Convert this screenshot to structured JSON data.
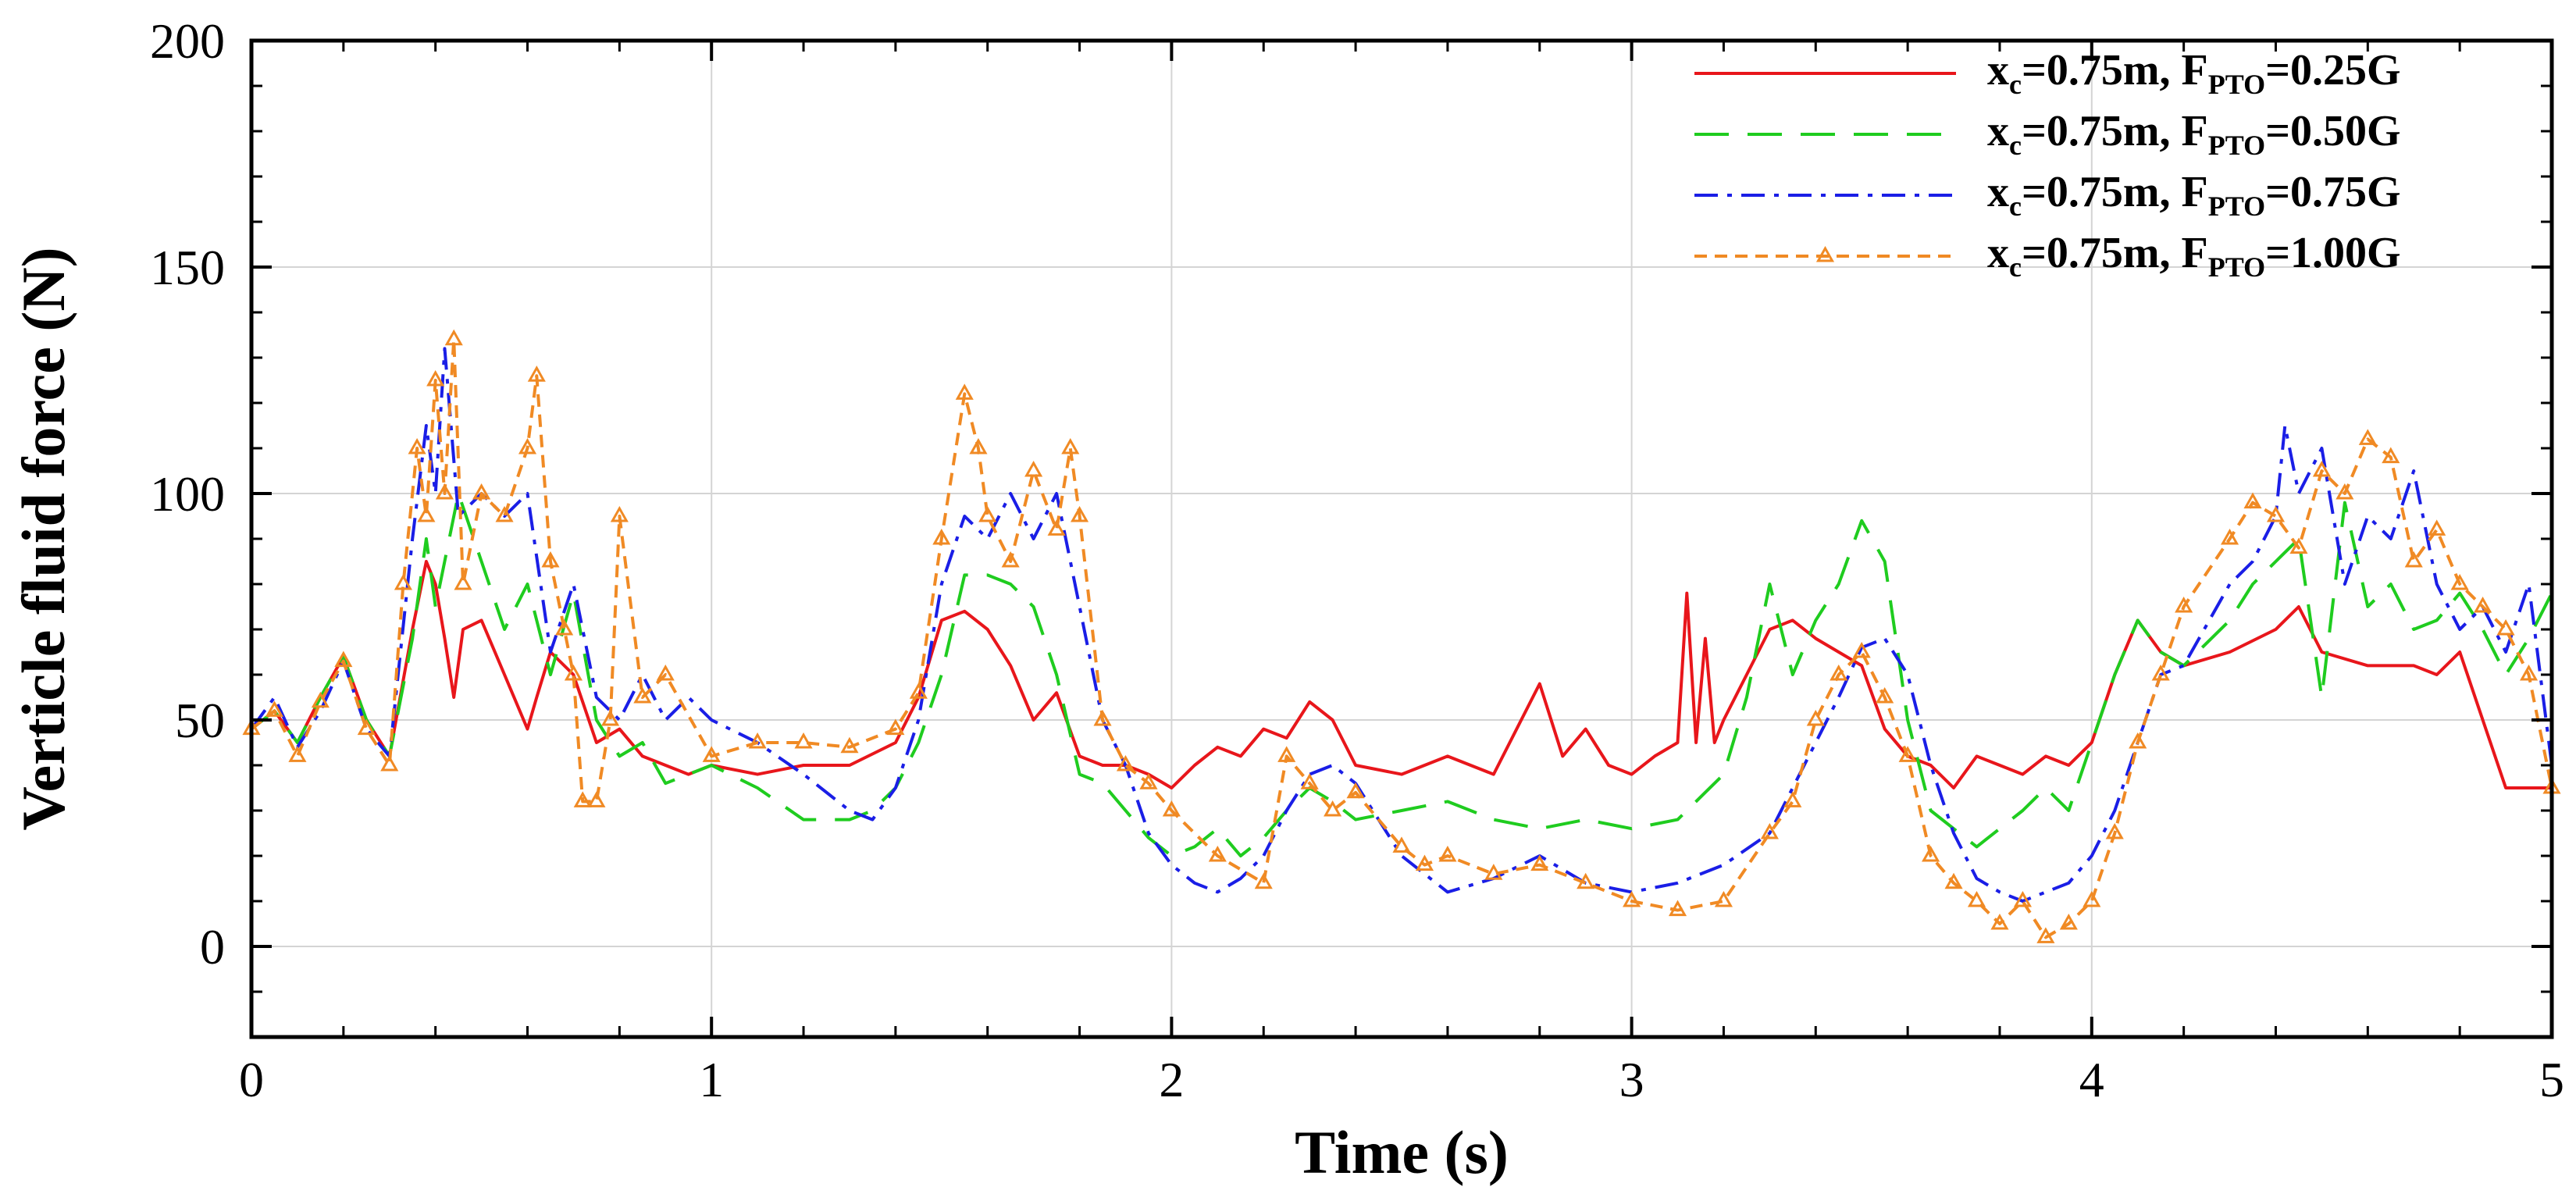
{
  "chart_data": {
    "type": "line",
    "title": "",
    "xlabel": "Time (s)",
    "ylabel": "Verticle fluid force (N)",
    "xlim": [
      0,
      5
    ],
    "ylim": [
      -20,
      200
    ],
    "xticks": [
      0,
      1,
      2,
      3,
      4,
      5
    ],
    "xtick_labels": [
      "0",
      "1",
      "2",
      "3",
      "4",
      "5"
    ],
    "yticks": [
      0,
      50,
      100,
      150,
      200
    ],
    "ytick_labels": [
      "0",
      "50",
      "100",
      "150",
      "200"
    ],
    "grid": true,
    "legend_position": "top-right",
    "series": [
      {
        "name": "xc=0.75m, FPTO=0.25G",
        "legend": {
          "x_main": "x",
          "x_sub": "c",
          "mid": "=0.75m, F",
          "f_sub": "PTO",
          "tail": "=0.25G"
        },
        "color": "#e8161b",
        "dash": "solid",
        "marker": "none",
        "x": [
          0,
          0.05,
          0.1,
          0.15,
          0.2,
          0.25,
          0.3,
          0.35,
          0.38,
          0.4,
          0.42,
          0.44,
          0.46,
          0.5,
          0.55,
          0.6,
          0.62,
          0.65,
          0.7,
          0.75,
          0.8,
          0.85,
          0.9,
          0.95,
          1.0,
          1.1,
          1.2,
          1.3,
          1.4,
          1.45,
          1.5,
          1.55,
          1.6,
          1.65,
          1.7,
          1.75,
          1.8,
          1.85,
          1.9,
          1.95,
          2.0,
          2.05,
          2.1,
          2.15,
          2.2,
          2.25,
          2.3,
          2.35,
          2.4,
          2.5,
          2.6,
          2.7,
          2.8,
          2.85,
          2.9,
          2.95,
          3.0,
          3.05,
          3.1,
          3.12,
          3.14,
          3.16,
          3.18,
          3.2,
          3.25,
          3.3,
          3.35,
          3.4,
          3.45,
          3.5,
          3.55,
          3.6,
          3.65,
          3.7,
          3.75,
          3.8,
          3.85,
          3.9,
          3.95,
          4.0,
          4.05,
          4.1,
          4.15,
          4.2,
          4.3,
          4.4,
          4.45,
          4.5,
          4.6,
          4.7,
          4.75,
          4.8,
          4.85,
          4.9,
          5.0
        ],
        "values": [
          48,
          52,
          45,
          55,
          64,
          50,
          42,
          70,
          85,
          80,
          68,
          55,
          70,
          72,
          60,
          48,
          55,
          65,
          60,
          45,
          48,
          42,
          40,
          38,
          40,
          38,
          40,
          40,
          45,
          55,
          72,
          74,
          70,
          62,
          50,
          56,
          42,
          40,
          40,
          38,
          35,
          40,
          44,
          42,
          48,
          46,
          54,
          50,
          40,
          38,
          42,
          38,
          58,
          42,
          48,
          40,
          38,
          42,
          45,
          78,
          45,
          68,
          45,
          50,
          60,
          70,
          72,
          68,
          65,
          62,
          48,
          42,
          40,
          35,
          42,
          40,
          38,
          42,
          40,
          45,
          60,
          72,
          65,
          62,
          65,
          70,
          75,
          65,
          62,
          62,
          60,
          65,
          50,
          35,
          35
        ]
      },
      {
        "name": "xc=0.75m, FPTO=0.50G",
        "legend": {
          "x_main": "x",
          "x_sub": "c",
          "mid": "=0.75m, F",
          "f_sub": "PTO",
          "tail": "=0.50G"
        },
        "color": "#1fcc1f",
        "dash": "long-dash",
        "marker": "none",
        "x": [
          0,
          0.05,
          0.1,
          0.15,
          0.2,
          0.25,
          0.3,
          0.35,
          0.38,
          0.4,
          0.45,
          0.5,
          0.55,
          0.6,
          0.65,
          0.7,
          0.75,
          0.8,
          0.85,
          0.9,
          1.0,
          1.1,
          1.2,
          1.3,
          1.35,
          1.4,
          1.45,
          1.5,
          1.55,
          1.6,
          1.65,
          1.7,
          1.75,
          1.8,
          1.85,
          1.9,
          1.95,
          2.0,
          2.05,
          2.1,
          2.15,
          2.2,
          2.25,
          2.3,
          2.35,
          2.4,
          2.5,
          2.6,
          2.7,
          2.8,
          2.9,
          3.0,
          3.1,
          3.2,
          3.25,
          3.3,
          3.35,
          3.4,
          3.45,
          3.5,
          3.55,
          3.6,
          3.65,
          3.7,
          3.75,
          3.8,
          3.85,
          3.9,
          3.95,
          4.0,
          4.05,
          4.1,
          4.15,
          4.2,
          4.3,
          4.35,
          4.4,
          4.45,
          4.5,
          4.55,
          4.6,
          4.65,
          4.7,
          4.75,
          4.8,
          4.85,
          4.9,
          4.95,
          5.0
        ],
        "values": [
          48,
          52,
          45,
          55,
          64,
          50,
          42,
          68,
          90,
          75,
          100,
          85,
          70,
          80,
          60,
          78,
          50,
          42,
          45,
          36,
          40,
          35,
          28,
          28,
          30,
          35,
          45,
          60,
          82,
          82,
          80,
          75,
          60,
          38,
          36,
          30,
          24,
          20,
          22,
          26,
          20,
          24,
          30,
          35,
          32,
          28,
          30,
          32,
          28,
          26,
          28,
          26,
          28,
          38,
          55,
          80,
          60,
          72,
          80,
          94,
          85,
          50,
          30,
          26,
          22,
          26,
          30,
          35,
          30,
          45,
          60,
          72,
          65,
          62,
          72,
          80,
          85,
          90,
          55,
          98,
          75,
          80,
          70,
          72,
          78,
          70,
          60,
          68,
          78
        ]
      },
      {
        "name": "xc=0.75m, FPTO=0.75G",
        "legend": {
          "x_main": "x",
          "x_sub": "c",
          "mid": "=0.75m, F",
          "f_sub": "PTO",
          "tail": "=0.75G"
        },
        "color": "#1a1ee6",
        "dash": "dash-dot",
        "marker": "none",
        "x": [
          0,
          0.05,
          0.1,
          0.15,
          0.2,
          0.25,
          0.3,
          0.35,
          0.38,
          0.4,
          0.42,
          0.45,
          0.5,
          0.55,
          0.6,
          0.65,
          0.7,
          0.75,
          0.8,
          0.85,
          0.9,
          0.95,
          1.0,
          1.1,
          1.2,
          1.3,
          1.35,
          1.4,
          1.45,
          1.5,
          1.55,
          1.6,
          1.65,
          1.7,
          1.75,
          1.8,
          1.85,
          1.9,
          1.95,
          2.0,
          2.05,
          2.1,
          2.15,
          2.2,
          2.25,
          2.3,
          2.35,
          2.4,
          2.45,
          2.5,
          2.6,
          2.7,
          2.8,
          2.9,
          3.0,
          3.1,
          3.2,
          3.3,
          3.35,
          3.4,
          3.45,
          3.5,
          3.55,
          3.6,
          3.65,
          3.7,
          3.75,
          3.8,
          3.85,
          3.9,
          3.95,
          4.0,
          4.05,
          4.1,
          4.15,
          4.2,
          4.3,
          4.35,
          4.4,
          4.42,
          4.45,
          4.5,
          4.55,
          4.6,
          4.65,
          4.7,
          4.75,
          4.8,
          4.85,
          4.9,
          4.95,
          5.0
        ],
        "values": [
          48,
          55,
          44,
          52,
          63,
          48,
          42,
          90,
          115,
          100,
          132,
          95,
          100,
          95,
          100,
          65,
          80,
          55,
          50,
          60,
          50,
          55,
          50,
          45,
          38,
          30,
          28,
          35,
          50,
          80,
          95,
          90,
          100,
          90,
          100,
          75,
          50,
          40,
          25,
          18,
          14,
          12,
          15,
          20,
          30,
          38,
          40,
          36,
          28,
          20,
          12,
          15,
          20,
          14,
          12,
          14,
          18,
          25,
          35,
          45,
          55,
          66,
          68,
          60,
          40,
          25,
          15,
          12,
          10,
          12,
          14,
          20,
          30,
          45,
          60,
          62,
          80,
          85,
          95,
          115,
          100,
          110,
          80,
          95,
          90,
          105,
          80,
          70,
          75,
          65,
          80,
          40
        ]
      },
      {
        "name": "xc=0.75m, FPTO=1.00G",
        "legend": {
          "x_main": "x",
          "x_sub": "c",
          "mid": "=0.75m, F",
          "f_sub": "PTO",
          "tail": "=1.00G"
        },
        "color": "#f08a24",
        "dash": "short-dash",
        "marker": "triangle",
        "x": [
          0,
          0.05,
          0.1,
          0.15,
          0.2,
          0.25,
          0.3,
          0.33,
          0.36,
          0.38,
          0.4,
          0.42,
          0.44,
          0.46,
          0.5,
          0.55,
          0.6,
          0.62,
          0.65,
          0.68,
          0.7,
          0.72,
          0.75,
          0.78,
          0.8,
          0.85,
          0.9,
          1.0,
          1.1,
          1.2,
          1.3,
          1.4,
          1.45,
          1.5,
          1.55,
          1.58,
          1.6,
          1.65,
          1.7,
          1.75,
          1.78,
          1.8,
          1.85,
          1.9,
          1.95,
          2.0,
          2.1,
          2.2,
          2.25,
          2.3,
          2.35,
          2.4,
          2.5,
          2.55,
          2.6,
          2.7,
          2.8,
          2.9,
          3.0,
          3.1,
          3.2,
          3.3,
          3.35,
          3.4,
          3.45,
          3.5,
          3.55,
          3.6,
          3.65,
          3.7,
          3.75,
          3.8,
          3.85,
          3.9,
          3.95,
          4.0,
          4.05,
          4.1,
          4.15,
          4.2,
          4.3,
          4.35,
          4.4,
          4.45,
          4.5,
          4.55,
          4.6,
          4.65,
          4.7,
          4.75,
          4.8,
          4.85,
          4.9,
          4.95,
          5.0
        ],
        "values": [
          48,
          52,
          42,
          54,
          63,
          48,
          40,
          80,
          110,
          95,
          125,
          100,
          134,
          80,
          100,
          95,
          110,
          126,
          85,
          70,
          60,
          32,
          32,
          50,
          95,
          55,
          60,
          42,
          45,
          45,
          44,
          48,
          56,
          90,
          122,
          110,
          95,
          85,
          105,
          92,
          110,
          95,
          50,
          40,
          36,
          30,
          20,
          14,
          42,
          36,
          30,
          34,
          22,
          18,
          20,
          16,
          18,
          14,
          10,
          8,
          10,
          25,
          32,
          50,
          60,
          65,
          55,
          42,
          20,
          14,
          10,
          5,
          10,
          2,
          5,
          10,
          25,
          45,
          60,
          75,
          90,
          98,
          95,
          88,
          105,
          100,
          112,
          108,
          85,
          92,
          80,
          75,
          70,
          60,
          35
        ]
      }
    ]
  }
}
